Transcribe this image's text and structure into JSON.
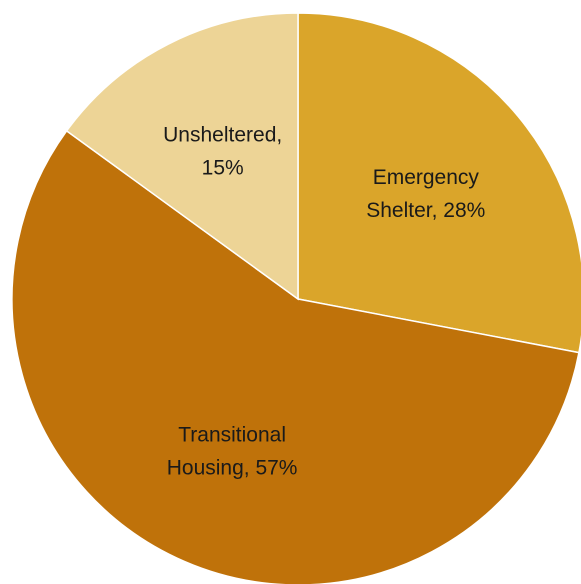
{
  "chart_data": {
    "type": "pie",
    "slices": [
      {
        "label_lines": [
          "Emergency",
          "Shelter, 28%"
        ],
        "value": 28,
        "color": "#DAA52A"
      },
      {
        "label_lines": [
          "Transitional",
          "Housing, 57%"
        ],
        "value": 57,
        "color": "#BF720A"
      },
      {
        "label_lines": [
          "Unsheltered,",
          "15%"
        ],
        "value": 15,
        "color": "#EDD496"
      }
    ],
    "start_angle_deg": 0,
    "direction": "clockwise",
    "legend": "none"
  }
}
